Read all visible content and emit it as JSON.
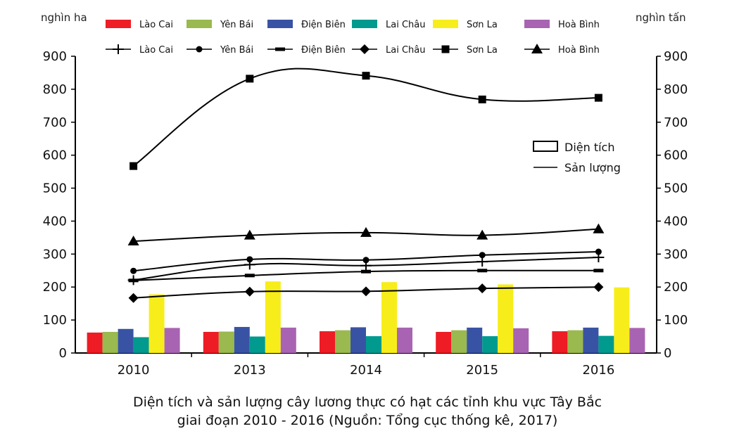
{
  "chart_data": {
    "type": "bar",
    "title": "Diện tích và sản lượng cây lương thực có hạt các tỉnh khu vực Tây Bắc",
    "subtitle": "giai đoạn 2010 - 2016 (Nguồn: Tổng cục thống kê, 2017)",
    "categories": [
      "2010",
      "2013",
      "2014",
      "2015",
      "2016"
    ],
    "left_axis": {
      "label": "nghìn ha",
      "ylim": [
        0,
        900
      ],
      "ticks": [
        "0",
        "100",
        "200",
        "300",
        "400",
        "500",
        "600",
        "700",
        "800",
        "900"
      ]
    },
    "right_axis": {
      "label": "nghìn tấn",
      "ylim": [
        0,
        900
      ],
      "ticks": [
        "0",
        "100",
        "200",
        "300",
        "400",
        "500",
        "600",
        "700",
        "800",
        "900"
      ]
    },
    "grid": false,
    "legend_placement": "top",
    "type_legend": {
      "area": "Diện tích",
      "production": "Sản lượng"
    },
    "area_series": [
      {
        "name": "Lào Cai",
        "color": "#ee1c25",
        "values": [
          62,
          64,
          66,
          64,
          66
        ]
      },
      {
        "name": "Yên Bái",
        "color": "#9ab94e",
        "values": [
          64,
          65,
          69,
          69,
          69
        ]
      },
      {
        "name": "Điện Biên",
        "color": "#3953a4",
        "values": [
          73,
          79,
          78,
          77,
          77
        ]
      },
      {
        "name": "Lai Châu",
        "color": "#009a8e",
        "values": [
          48,
          50,
          51,
          51,
          52
        ]
      },
      {
        "name": "Sơn La",
        "color": "#f7ed1b",
        "values": [
          178,
          217,
          215,
          208,
          199
        ]
      },
      {
        "name": "Hoà Bình",
        "color": "#a864b2",
        "values": [
          76,
          77,
          77,
          75,
          76
        ]
      }
    ],
    "production_series": [
      {
        "name": "Lào Cai",
        "marker": "plus",
        "values": [
          221,
          268,
          265,
          277,
          290
        ]
      },
      {
        "name": "Yên Bái",
        "marker": "circle",
        "values": [
          249,
          284,
          282,
          297,
          307
        ]
      },
      {
        "name": "Điện Biên",
        "marker": "dash",
        "values": [
          220,
          235,
          247,
          250,
          250
        ]
      },
      {
        "name": "Lai Châu",
        "marker": "diamond",
        "values": [
          167,
          186,
          187,
          196,
          200
        ]
      },
      {
        "name": "Sơn La",
        "marker": "square",
        "values": [
          567,
          832,
          841,
          769,
          774
        ]
      },
      {
        "name": "Hoà Bình",
        "marker": "triangle",
        "values": [
          339,
          357,
          365,
          357,
          376
        ]
      }
    ]
  }
}
